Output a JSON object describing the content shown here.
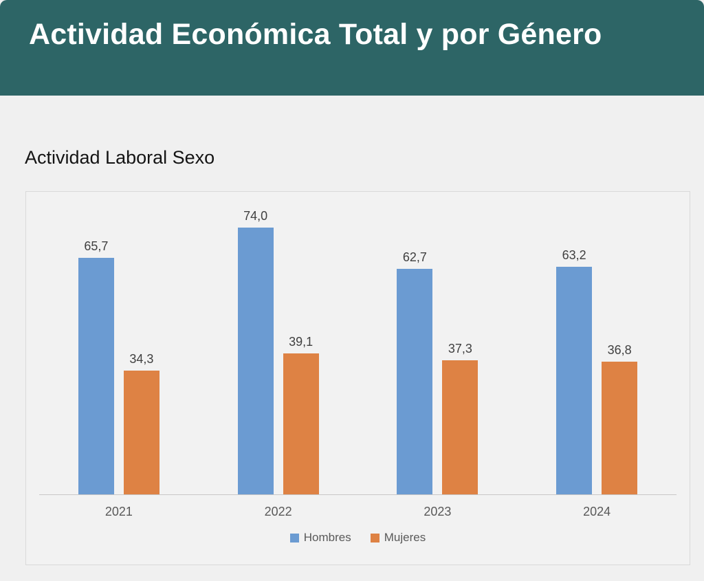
{
  "header": {
    "title": "Actividad Económica Total y por Género",
    "background_color": "#2d6566",
    "text_color": "#ffffff"
  },
  "section": {
    "title": "Actividad Laboral Sexo"
  },
  "chart_data": {
    "type": "bar",
    "title": "Actividad Laboral Sexo",
    "categories": [
      "2021",
      "2022",
      "2023",
      "2024"
    ],
    "series": [
      {
        "name": "Hombres",
        "color": "#6b9bd2",
        "values": [
          65.7,
          74.0,
          62.7,
          63.2
        ],
        "labels": [
          "65,7",
          "74,0",
          "62,7",
          "63,2"
        ]
      },
      {
        "name": "Mujeres",
        "color": "#de8244",
        "values": [
          34.3,
          39.1,
          37.3,
          36.8
        ],
        "labels": [
          "34,3",
          "39,1",
          "37,3",
          "36,8"
        ]
      }
    ],
    "ylim": [
      0,
      84
    ],
    "xlabel": "",
    "ylabel": "",
    "grid": false,
    "value_labels_shown": true,
    "decimal_separator": ",",
    "legend_position": "bottom",
    "axis_line_color": "#c9c7c7",
    "value_label_color": "#3f3f3f",
    "tick_label_color": "#595959"
  }
}
